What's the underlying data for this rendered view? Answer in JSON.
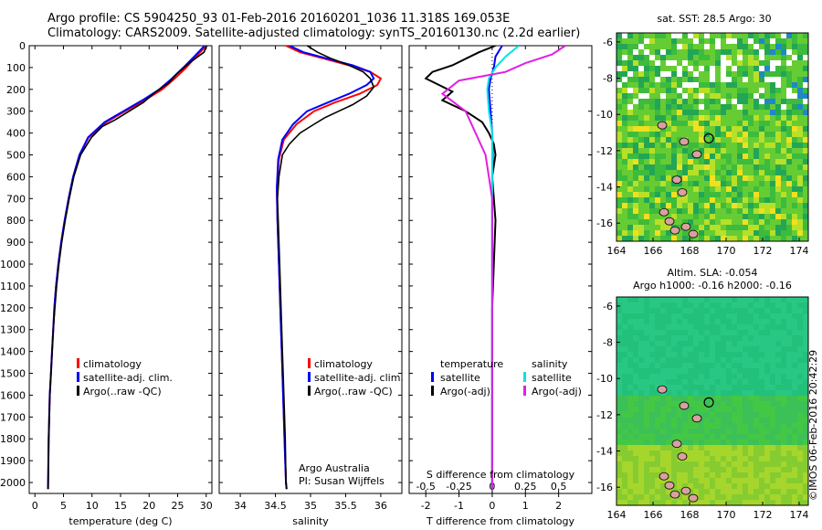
{
  "header": {
    "line1": "Argo profile: CS 5904250_93 01-Feb-2016 20160201_1036 11.318S 169.053E",
    "line2": "Climatology: CARS2009. Satellite-adjusted climatology: synTS_20160130.nc (2.2d earlier)"
  },
  "side_label": "©IMOS 06-Feb-2016 20:42:29",
  "credit": {
    "line1": "Argo Australia",
    "line2": "PI: Susan Wijffels"
  },
  "colors": {
    "climatology": "#ff0000",
    "satellite": "#0000ff",
    "argo": "#000000",
    "sat_cyan": "#00e5e5",
    "argo_magenta": "#e020e0"
  },
  "chart_data": [
    {
      "type": "line",
      "id": "temperature",
      "xlabel": "temperature (deg C)",
      "ylabel": "",
      "xlim": [
        -1,
        31
      ],
      "ylim": [
        2050,
        0
      ],
      "xticks": [
        0,
        5,
        10,
        15,
        20,
        25,
        30
      ],
      "yticks": [
        0,
        100,
        200,
        300,
        400,
        500,
        600,
        700,
        800,
        900,
        1000,
        1100,
        1200,
        1300,
        1400,
        1500,
        1600,
        1700,
        1800,
        1900,
        2000
      ],
      "legend": [
        "climatology",
        "satellite-adj. clim.",
        "Argo(..raw -QC)"
      ],
      "series": [
        {
          "name": "climatology",
          "color": "#ff0000",
          "x": [
            30,
            29.3,
            28.2,
            26.5,
            24.5,
            22.3,
            19.2,
            15.8,
            12.5,
            9.4,
            7.8,
            6.7,
            5.9,
            5.2,
            4.6,
            4.1,
            3.7,
            3.4,
            3.2,
            3.0,
            2.8,
            2.6,
            2.5,
            2.4,
            2.3
          ],
          "y": [
            0,
            20,
            50,
            100,
            150,
            200,
            250,
            300,
            350,
            420,
            500,
            600,
            700,
            800,
            900,
            1000,
            1100,
            1200,
            1300,
            1400,
            1500,
            1600,
            1700,
            1800,
            2030
          ]
        },
        {
          "name": "satellite-adj. clim.",
          "color": "#0000ff",
          "x": [
            29.7,
            29.0,
            27.9,
            26.0,
            24.0,
            21.8,
            18.8,
            15.5,
            12.2,
            9.3,
            7.8,
            6.7,
            5.9,
            5.2,
            4.6,
            4.1,
            3.7,
            3.4,
            3.2,
            3.0,
            2.8,
            2.6,
            2.5,
            2.4,
            2.3
          ],
          "y": [
            0,
            20,
            50,
            100,
            150,
            200,
            250,
            300,
            350,
            420,
            500,
            600,
            700,
            800,
            900,
            1000,
            1100,
            1200,
            1300,
            1400,
            1500,
            1600,
            1700,
            1800,
            2030
          ]
        },
        {
          "name": "Argo(..raw -QC)",
          "color": "#000000",
          "x": [
            30.1,
            29.6,
            27.0,
            24.8,
            23.5,
            21.2,
            19.0,
            16.5,
            14.0,
            11.8,
            9.9,
            8.0,
            6.8,
            6.0,
            5.3,
            4.7,
            4.2,
            3.8,
            3.5,
            3.2,
            3.0,
            2.8,
            2.6,
            2.5,
            2.4,
            2.3
          ],
          "y": [
            0,
            30,
            80,
            130,
            170,
            210,
            260,
            300,
            340,
            370,
            420,
            500,
            600,
            700,
            800,
            900,
            1000,
            1100,
            1200,
            1300,
            1400,
            1500,
            1600,
            1700,
            1800,
            2030
          ]
        }
      ]
    },
    {
      "type": "line",
      "id": "salinity",
      "xlabel": "salinity",
      "ylabel": "",
      "xlim": [
        33.7,
        36.3
      ],
      "ylim": [
        2050,
        0
      ],
      "xticks": [
        34,
        34.5,
        35,
        35.5,
        36
      ],
      "legend": [
        "climatology",
        "satellite-adj. clim.",
        "Argo(..raw -QC)"
      ],
      "series": [
        {
          "name": "climatology",
          "color": "#ff0000",
          "x": [
            34.65,
            34.85,
            35.2,
            35.55,
            35.85,
            36.0,
            35.95,
            35.7,
            35.35,
            35.05,
            34.8,
            34.62,
            34.55,
            34.52,
            34.53,
            34.55,
            34.57,
            34.59,
            34.61,
            34.63,
            34.64,
            34.65,
            34.66
          ],
          "y": [
            0,
            30,
            60,
            90,
            120,
            150,
            180,
            220,
            260,
            300,
            360,
            430,
            520,
            650,
            800,
            1000,
            1200,
            1400,
            1600,
            1800,
            1900,
            2000,
            2030
          ]
        },
        {
          "name": "satellite-adj. clim.",
          "color": "#0000ff",
          "x": [
            34.7,
            34.9,
            35.25,
            35.6,
            35.85,
            35.9,
            35.8,
            35.55,
            35.25,
            34.95,
            34.75,
            34.6,
            34.54,
            34.52,
            34.53,
            34.55,
            34.57,
            34.59,
            34.61,
            34.63,
            34.64,
            34.65,
            34.66
          ],
          "y": [
            0,
            30,
            60,
            90,
            120,
            150,
            180,
            220,
            260,
            300,
            360,
            430,
            520,
            650,
            800,
            1000,
            1200,
            1400,
            1600,
            1800,
            1900,
            2000,
            2030
          ]
        },
        {
          "name": "Argo(..raw -QC)",
          "color": "#000000",
          "x": [
            34.95,
            35.1,
            35.3,
            35.55,
            35.75,
            35.85,
            35.9,
            35.8,
            35.6,
            35.4,
            35.2,
            35.05,
            34.85,
            34.7,
            34.6,
            34.55,
            34.53,
            34.54,
            34.56,
            34.58,
            34.6,
            34.62,
            34.64,
            34.65,
            34.66
          ],
          "y": [
            0,
            30,
            60,
            90,
            120,
            150,
            190,
            230,
            270,
            300,
            330,
            360,
            400,
            450,
            500,
            600,
            700,
            800,
            1000,
            1200,
            1400,
            1600,
            1800,
            2000,
            2030
          ]
        }
      ]
    },
    {
      "type": "line",
      "id": "differences",
      "xlabel": "T difference from climatology",
      "xlabel_top": "S difference from climatology",
      "xlim": [
        -2.5,
        3.0
      ],
      "xticks_T": [
        -2,
        -1,
        0,
        1,
        2
      ],
      "xticks_S": [
        -0.5,
        -0.25,
        0,
        0.25,
        0.5
      ],
      "legend_temperature": [
        "temperature",
        "satellite",
        "Argo(-adj)"
      ],
      "legend_salinity": [
        "salinity",
        "satellite",
        "Argo(-adj)"
      ],
      "series": [
        {
          "name": "satellite",
          "color": "#0000ff",
          "x": [
            0.3,
            0.1,
            0.05,
            -0.05,
            -0.1,
            -0.05,
            0.0,
            0.02,
            0.0,
            0.0,
            0.0,
            0.0,
            0.0
          ],
          "y": [
            0,
            50,
            100,
            150,
            200,
            300,
            400,
            500,
            600,
            800,
            1200,
            1600,
            2030
          ]
        },
        {
          "name": "Argo(-adj)",
          "color": "#000000",
          "x": [
            0.1,
            -0.4,
            -0.8,
            -1.2,
            -1.8,
            -2.0,
            -1.6,
            -1.2,
            -1.5,
            -0.8,
            -0.3,
            -0.1,
            0.05,
            0.1,
            0.0,
            0.1,
            0.0,
            0.0,
            0.0
          ],
          "y": [
            0,
            30,
            60,
            90,
            120,
            150,
            180,
            210,
            250,
            300,
            350,
            400,
            450,
            500,
            600,
            800,
            1200,
            1600,
            2030
          ]
        },
        {
          "name": "satellite",
          "color": "#00e5e5",
          "x": [
            0.8,
            0.4,
            0.1,
            -0.1,
            -0.15,
            -0.1,
            0.0,
            0.0,
            0.0,
            0.0,
            0.0,
            0.0
          ],
          "y": [
            0,
            50,
            100,
            150,
            200,
            300,
            400,
            500,
            700,
            1000,
            1500,
            2030
          ]
        },
        {
          "name": "Argo(-adj)",
          "color": "#e020e0",
          "x": [
            2.2,
            1.8,
            1.0,
            0.4,
            -1.0,
            -1.5,
            -0.8,
            -0.2,
            0.0,
            0.0,
            0.0,
            0.0
          ],
          "y": [
            0,
            40,
            80,
            120,
            160,
            220,
            300,
            500,
            700,
            1000,
            1500,
            2030
          ]
        }
      ]
    },
    {
      "type": "heatmap",
      "id": "sst_map",
      "title": "sat. SST: 28.5 Argo: 30",
      "xlim": [
        164,
        174.5
      ],
      "ylim": [
        -17,
        -5.5
      ],
      "xticks": [
        164,
        166,
        168,
        170,
        172,
        174
      ],
      "yticks": [
        -6,
        -8,
        -10,
        -12,
        -14,
        -16
      ],
      "marker": {
        "lon": 169.053,
        "lat": -11.318
      }
    },
    {
      "type": "heatmap",
      "id": "sla_map",
      "title": "Altim. SLA: -0.054",
      "subtitle": "Argo h1000: -0.16 h2000: -0.16",
      "xlim": [
        164,
        174.5
      ],
      "ylim": [
        -17,
        -5.5
      ],
      "xticks": [
        164,
        166,
        168,
        170,
        172,
        174
      ],
      "yticks": [
        -6,
        -8,
        -10,
        -12,
        -14,
        -16
      ],
      "marker": {
        "lon": 169.053,
        "lat": -11.318
      }
    }
  ]
}
